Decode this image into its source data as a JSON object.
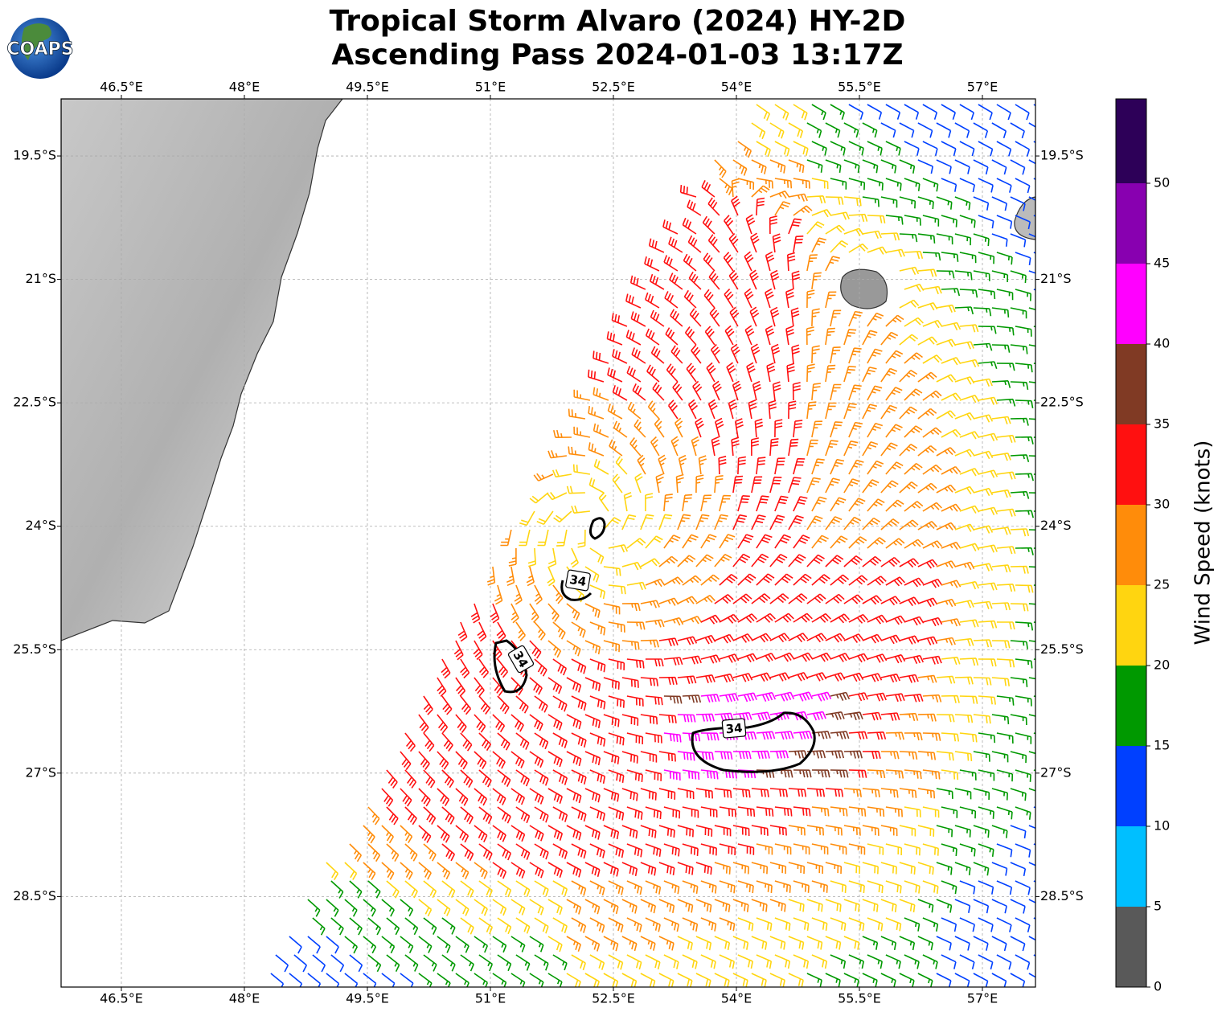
{
  "title": "Tropical Storm Alvaro (2024) HY-2D",
  "subtitle": "Ascending Pass 2024-01-03 13:17Z",
  "logo_text": "COAPS",
  "contour_label": "34",
  "map": {
    "xlim": [
      45.765,
      57.647
    ],
    "ylim": [
      -29.6,
      -18.806
    ],
    "xticks": [
      {
        "value": 46.5,
        "label": "46.5°E"
      },
      {
        "value": 48,
        "label": "48°E"
      },
      {
        "value": 49.5,
        "label": "49.5°E"
      },
      {
        "value": 51,
        "label": "51°E"
      },
      {
        "value": 52.5,
        "label": "52.5°E"
      },
      {
        "value": 54,
        "label": "54°E"
      },
      {
        "value": 55.5,
        "label": "55.5°E"
      },
      {
        "value": 57,
        "label": "57°E"
      }
    ],
    "yticks": [
      {
        "value": -19.5,
        "label": "19.5°S"
      },
      {
        "value": -21,
        "label": "21°S"
      },
      {
        "value": -22.5,
        "label": "22.5°S"
      },
      {
        "value": -24,
        "label": "24°S"
      },
      {
        "value": -25.5,
        "label": "25.5°S"
      },
      {
        "value": -27,
        "label": "27°S"
      },
      {
        "value": -28.5,
        "label": "28.5°S"
      }
    ]
  },
  "colorbar": {
    "label": "Wind Speed (knots)",
    "lim": [
      0,
      55.25
    ],
    "bounds": [
      0,
      5,
      10,
      15,
      20,
      25,
      30,
      35,
      40,
      45,
      50,
      55.25
    ],
    "colors": [
      "#595959",
      "#00bfff",
      "#0040ff",
      "#009900",
      "#ffd510",
      "#ff8c0a",
      "#ff1010",
      "#803a24",
      "#ff00ff",
      "#8800b0",
      "#2d0058"
    ],
    "ticks": [
      0,
      5,
      10,
      15,
      20,
      25,
      30,
      35,
      40,
      45,
      50
    ]
  }
}
